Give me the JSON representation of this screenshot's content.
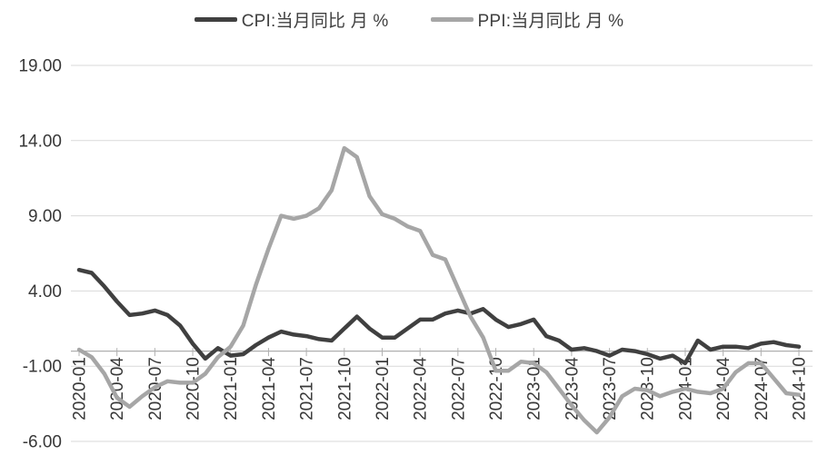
{
  "page": {
    "background": "#ffffff"
  },
  "legend": {
    "items": [
      {
        "label": "CPI:当月同比 月 %",
        "color": "#404040"
      },
      {
        "label": "PPI:当月同比 月 %",
        "color": "#a6a6a6"
      }
    ]
  },
  "chart_data": {
    "type": "line",
    "title": "",
    "xlabel": "",
    "ylabel": "",
    "grid": true,
    "legend_position": "top",
    "x": [
      "2020-01",
      "2020-02",
      "2020-03",
      "2020-04",
      "2020-05",
      "2020-06",
      "2020-07",
      "2020-08",
      "2020-09",
      "2020-10",
      "2020-11",
      "2020-12",
      "2021-01",
      "2021-02",
      "2021-03",
      "2021-04",
      "2021-05",
      "2021-06",
      "2021-07",
      "2021-08",
      "2021-09",
      "2021-10",
      "2021-11",
      "2021-12",
      "2022-01",
      "2022-02",
      "2022-03",
      "2022-04",
      "2022-05",
      "2022-06",
      "2022-07",
      "2022-08",
      "2022-09",
      "2022-10",
      "2022-11",
      "2022-12",
      "2023-01",
      "2023-02",
      "2023-03",
      "2023-04",
      "2023-05",
      "2023-06",
      "2023-07",
      "2023-08",
      "2023-09",
      "2023-10",
      "2023-11",
      "2023-12",
      "2024-01",
      "2024-02",
      "2024-03",
      "2024-04",
      "2024-05",
      "2024-06",
      "2024-07",
      "2024-08",
      "2024-09",
      "2024-10"
    ],
    "series": [
      {
        "name": "CPI:当月同比 月 %",
        "color": "#404040",
        "values": [
          5.4,
          5.2,
          4.3,
          3.3,
          2.4,
          2.5,
          2.7,
          2.4,
          1.7,
          0.5,
          -0.5,
          0.2,
          -0.3,
          -0.2,
          0.4,
          0.9,
          1.3,
          1.1,
          1.0,
          0.8,
          0.7,
          1.5,
          2.3,
          1.5,
          0.9,
          0.9,
          1.5,
          2.1,
          2.1,
          2.5,
          2.7,
          2.5,
          2.8,
          2.1,
          1.6,
          1.8,
          2.1,
          1.0,
          0.7,
          0.1,
          0.2,
          0.0,
          -0.3,
          0.1,
          0.0,
          -0.2,
          -0.5,
          -0.3,
          -0.8,
          0.7,
          0.1,
          0.3,
          0.3,
          0.2,
          0.5,
          0.6,
          0.4,
          0.3
        ]
      },
      {
        "name": "PPI:当月同比 月 %",
        "color": "#a6a6a6",
        "values": [
          0.1,
          -0.4,
          -1.5,
          -3.1,
          -3.7,
          -3.0,
          -2.4,
          -2.0,
          -2.1,
          -2.1,
          -1.5,
          -0.4,
          0.3,
          1.7,
          4.4,
          6.8,
          9.0,
          8.8,
          9.0,
          9.5,
          10.7,
          13.5,
          12.9,
          10.3,
          9.1,
          8.8,
          8.3,
          8.0,
          6.4,
          6.1,
          4.2,
          2.3,
          0.9,
          -1.3,
          -1.3,
          -0.7,
          -0.8,
          -1.4,
          -2.5,
          -3.6,
          -4.6,
          -5.4,
          -4.4,
          -3.0,
          -2.5,
          -2.6,
          -3.0,
          -2.7,
          -2.5,
          -2.7,
          -2.8,
          -2.5,
          -1.4,
          -0.8,
          -0.8,
          -1.8,
          -2.8,
          -2.9
        ]
      }
    ],
    "y_axis": {
      "min": -6,
      "max": 19,
      "ticks": [
        {
          "value": 19,
          "label": "19.00"
        },
        {
          "value": 14,
          "label": "14.00"
        },
        {
          "value": 9,
          "label": "9.00"
        },
        {
          "value": 4,
          "label": "4.00"
        },
        {
          "value": -1,
          "label": "-1.00"
        },
        {
          "value": -6,
          "label": "-6.00"
        }
      ]
    },
    "x_axis": {
      "label_every": 3,
      "label_rotation": -90,
      "tick_labels": [
        "2020-01",
        "2020-04",
        "2020-07",
        "2020-10",
        "2021-01",
        "2021-04",
        "2021-07",
        "2021-10",
        "2022-01",
        "2022-04",
        "2022-07",
        "2022-10",
        "2023-01",
        "2023-04",
        "2023-07",
        "2023-10",
        "2024-01",
        "2024-04",
        "2024-07",
        "2024-10"
      ]
    },
    "colors": {
      "gridline": "#d9d9d9",
      "zero_axis": "#b0b0b0",
      "tick_label": "#383838"
    }
  }
}
